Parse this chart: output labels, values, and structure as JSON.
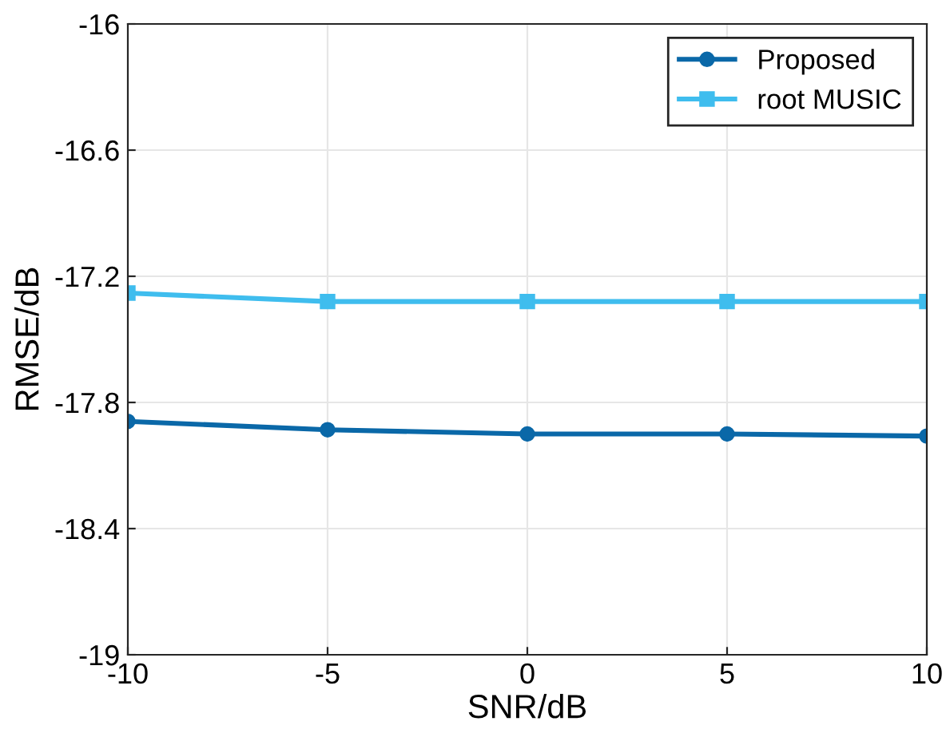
{
  "chart_data": {
    "type": "line",
    "xlabel": "SNR/dB",
    "ylabel": "RMSE/dB",
    "x": [
      -10,
      -5,
      0,
      5,
      10
    ],
    "series": [
      {
        "name": "Proposed",
        "color": "#0a68a8",
        "marker": "circle",
        "values": [
          -17.89,
          -17.93,
          -17.95,
          -17.95,
          -17.96
        ]
      },
      {
        "name": "root MUSIC",
        "color": "#3fbdee",
        "marker": "square",
        "values": [
          -17.28,
          -17.32,
          -17.32,
          -17.32,
          -17.32
        ]
      }
    ],
    "xlim": [
      -10,
      10
    ],
    "xticks": [
      -10,
      -5,
      0,
      5,
      10
    ],
    "ylim": [
      -19,
      -16
    ],
    "yticks": [
      -19,
      -18.4,
      -17.8,
      -17.2,
      -16.6,
      -16
    ],
    "grid": true,
    "legend": "top right",
    "line_style": "solid"
  }
}
